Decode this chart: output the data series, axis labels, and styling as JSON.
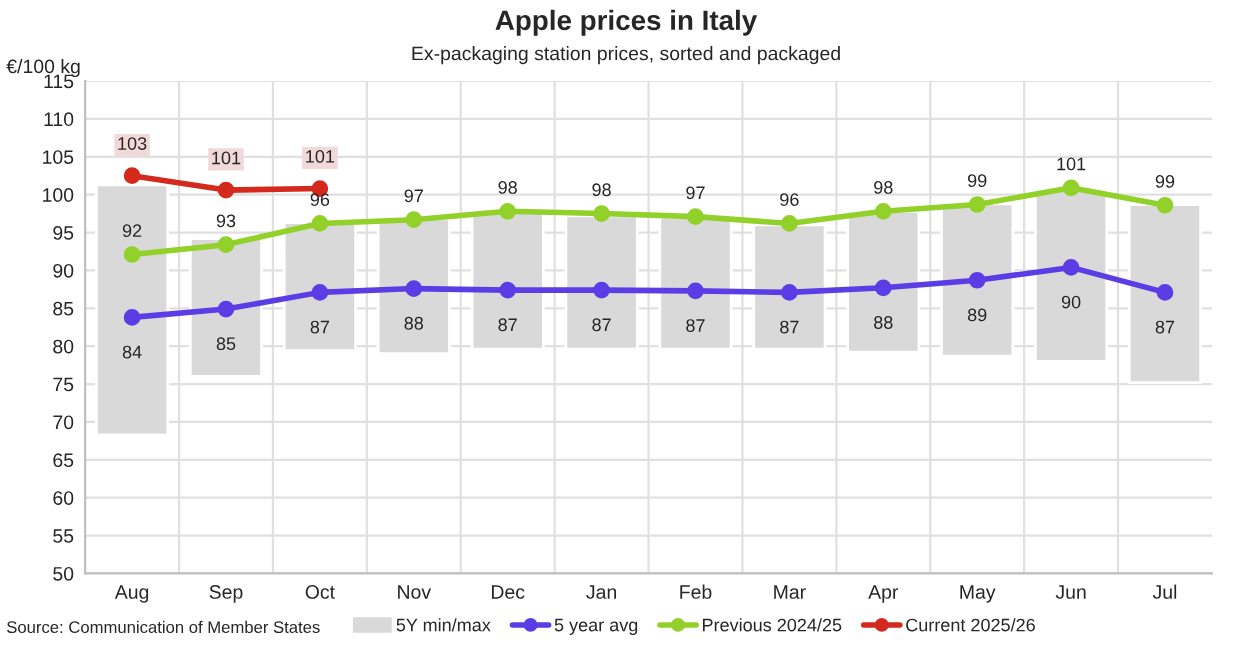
{
  "chart_data": {
    "type": "bar",
    "title": "Apple prices in Italy",
    "subtitle": "Ex-packaging station prices, sorted and packaged",
    "ylabel": "€/100 kg",
    "categories": [
      "Aug",
      "Sep",
      "Oct",
      "Nov",
      "Dec",
      "Jan",
      "Feb",
      "Mar",
      "Apr",
      "May",
      "Jun",
      "Jul"
    ],
    "series": [
      {
        "name": "5Y min/max",
        "color": "#d9d9d9",
        "base": [
          68.3,
          76,
          79.4,
          79,
          79.6,
          79.6,
          79.6,
          79.6,
          79.2,
          78.7,
          78,
          75.2
        ],
        "values": [
          33,
          18.2,
          16.9,
          17.8,
          18.1,
          17.6,
          17.4,
          16.4,
          18.6,
          20.1,
          22.7,
          23.5
        ]
      },
      {
        "name": "5 year avg",
        "type": "line",
        "color": "#5b3de6",
        "values": [
          83.8,
          84.9,
          87.1,
          87.6,
          87.4,
          87.4,
          87.3,
          87.1,
          87.7,
          88.7,
          90.4,
          87.1
        ],
        "value_labels": [
          "84",
          "85",
          "87",
          "88",
          "87",
          "87",
          "87",
          "87",
          "88",
          "89",
          "90",
          "87"
        ]
      },
      {
        "name": "Previous 2024/25",
        "type": "line",
        "color": "#92d02a",
        "values": [
          92.1,
          93.4,
          96.2,
          96.7,
          97.8,
          97.5,
          97.1,
          96.2,
          97.8,
          98.7,
          100.9,
          98.6
        ],
        "value_labels": [
          "92",
          "93",
          "96",
          "97",
          "98",
          "98",
          "97",
          "96",
          "98",
          "99",
          "101",
          "99"
        ]
      },
      {
        "name": "Current 2025/26",
        "type": "line",
        "color": "#d42a1e",
        "values": [
          102.5,
          100.6,
          100.8,
          null,
          null,
          null,
          null,
          null,
          null,
          null,
          null,
          null
        ],
        "value_labels": [
          "103",
          "101",
          "101",
          null,
          null,
          null,
          null,
          null,
          null,
          null,
          null,
          null
        ]
      }
    ],
    "ylim": [
      50,
      115
    ],
    "yticks": [
      50,
      55,
      60,
      65,
      70,
      75,
      80,
      85,
      90,
      95,
      100,
      105,
      110,
      115
    ],
    "grid": true,
    "legend": "bottom",
    "marker": "circle",
    "annotations": [
      "Source: Communication of Member States"
    ]
  }
}
